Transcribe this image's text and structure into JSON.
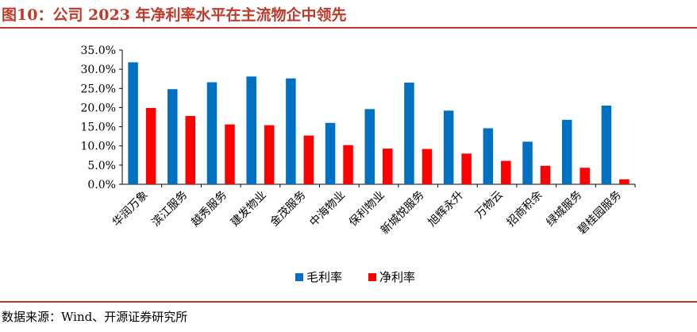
{
  "title": "图10：公司 2023 年净利率水平在主流物企中领先",
  "source": "数据来源：Wind、开源证券研究所",
  "colors": {
    "gross": "#0070c0",
    "net": "#ff0000",
    "accent": "#c0392b"
  },
  "chart_data": {
    "type": "bar",
    "title": "",
    "xlabel": "",
    "ylabel": "",
    "ylim": [
      0,
      35
    ],
    "yticks": [
      "0.0%",
      "5.0%",
      "10.0%",
      "15.0%",
      "20.0%",
      "25.0%",
      "30.0%",
      "35.0%"
    ],
    "grid": false,
    "legend": "bottom",
    "categories": [
      "华润万象",
      "滨江服务",
      "越秀服务",
      "建发物业",
      "金茂服务",
      "中海物业",
      "保利物业",
      "新城悦服务",
      "旭辉永升",
      "万物云",
      "招商积余",
      "绿城服务",
      "碧桂园服务"
    ],
    "series": [
      {
        "name": "毛利率",
        "values": [
          31.8,
          24.8,
          26.6,
          28.1,
          27.6,
          16.0,
          19.6,
          26.5,
          19.2,
          14.6,
          11.1,
          16.8,
          20.5
        ]
      },
      {
        "name": "净利率",
        "values": [
          19.9,
          17.8,
          15.6,
          15.4,
          12.7,
          10.2,
          9.3,
          9.2,
          8.0,
          6.1,
          4.8,
          4.3,
          1.3
        ]
      }
    ]
  }
}
